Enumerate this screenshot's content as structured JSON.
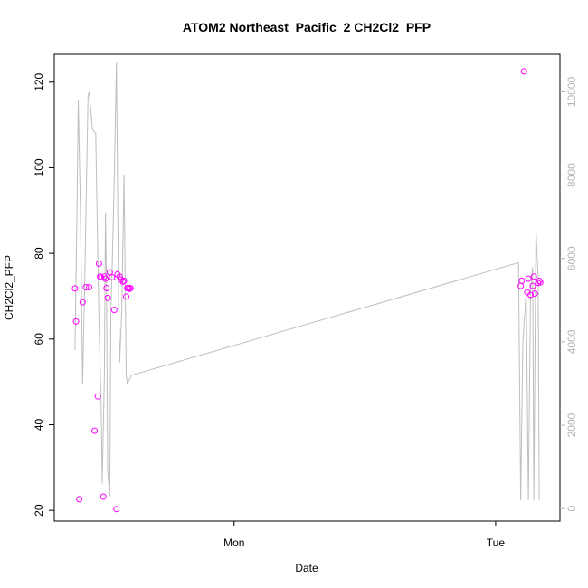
{
  "chart_data": {
    "type": "scatter",
    "title": "ATOM2 Northeast_Pacific_2 CH2Cl2_PFP",
    "xlabel": "Date",
    "ylabel": "CH2Cl2_PFP",
    "x_ticks": [
      "Mon",
      "Tue"
    ],
    "y_ticks": [
      "20",
      "40",
      "60",
      "80",
      "100",
      "120"
    ],
    "y2_ticks": [
      "0",
      "2000",
      "4000",
      "6000",
      "8000",
      "10000"
    ],
    "xlim_hours": [
      -16.5,
      29.9
    ],
    "ylim": [
      17.5,
      126.5
    ],
    "y2lim": [
      -300,
      10900
    ],
    "grid": false,
    "colors": {
      "points": "#ff00ff",
      "line": "#bebebe",
      "axis": "#000000",
      "axis2": "#b4b4b4"
    },
    "series": [
      {
        "kind": "points",
        "axis": "left",
        "x_hours": [
          -14.6,
          -14.5,
          -14.2,
          -13.9,
          -13.6,
          -13.3,
          -12.8,
          -12.5,
          -12.4,
          -12.3,
          -12.2,
          -12.0,
          -11.9,
          -11.8,
          -11.7,
          -11.6,
          -11.4,
          -11.2,
          -11.0,
          -10.8,
          -10.7,
          -10.5,
          -10.4,
          -10.2,
          -10.1,
          -9.9,
          -9.8,
          -9.7,
          -9.6,
          -9.5,
          26.3,
          26.4,
          26.6,
          26.9,
          27.0,
          27.2,
          27.4,
          27.5,
          27.6,
          27.9,
          28.0,
          28.1
        ],
        "values": [
          71.8,
          64.1,
          22.6,
          68.6,
          72.1,
          72.1,
          38.6,
          46.6,
          77.6,
          74.6,
          74.4,
          23.2,
          74.6,
          74.1,
          71.9,
          69.6,
          75.6,
          74.4,
          66.8,
          20.3,
          75.1,
          74.6,
          73.9,
          73.4,
          73.6,
          69.9,
          71.9,
          71.9,
          71.7,
          71.9,
          72.4,
          73.6,
          122.5,
          70.9,
          74.1,
          70.3,
          72.4,
          74.6,
          70.6,
          73.1,
          73.6,
          73.2
        ]
      },
      {
        "kind": "line",
        "axis": "right",
        "x_hours": [
          -14.6,
          -14.4,
          -14.3,
          -14.1,
          -13.9,
          -13.7,
          -13.4,
          -13.3,
          -13.0,
          -12.7,
          -12.4,
          -12.2,
          -12.1,
          -11.9,
          -11.8,
          -11.7,
          -11.6,
          -11.4,
          -11.3,
          -11.2,
          -11.0,
          -10.8,
          -10.6,
          -10.5,
          -10.3,
          -10.1,
          -9.9,
          -9.8,
          -9.6,
          -9.4,
          26.1,
          26.3,
          26.5,
          26.8,
          27.0,
          27.2,
          27.4,
          27.5,
          27.7,
          27.9,
          28.0
        ],
        "values": [
          3800,
          7500,
          9800,
          7200,
          3000,
          5500,
          9900,
          10000,
          9100,
          9000,
          4500,
          2500,
          600,
          3200,
          7100,
          5200,
          900,
          300,
          4800,
          5700,
          7900,
          10700,
          5000,
          3500,
          4800,
          8000,
          3200,
          3000,
          3100,
          3200,
          5900,
          200,
          4000,
          5200,
          200,
          5200,
          5800,
          200,
          6700,
          5500,
          200
        ]
      }
    ]
  }
}
